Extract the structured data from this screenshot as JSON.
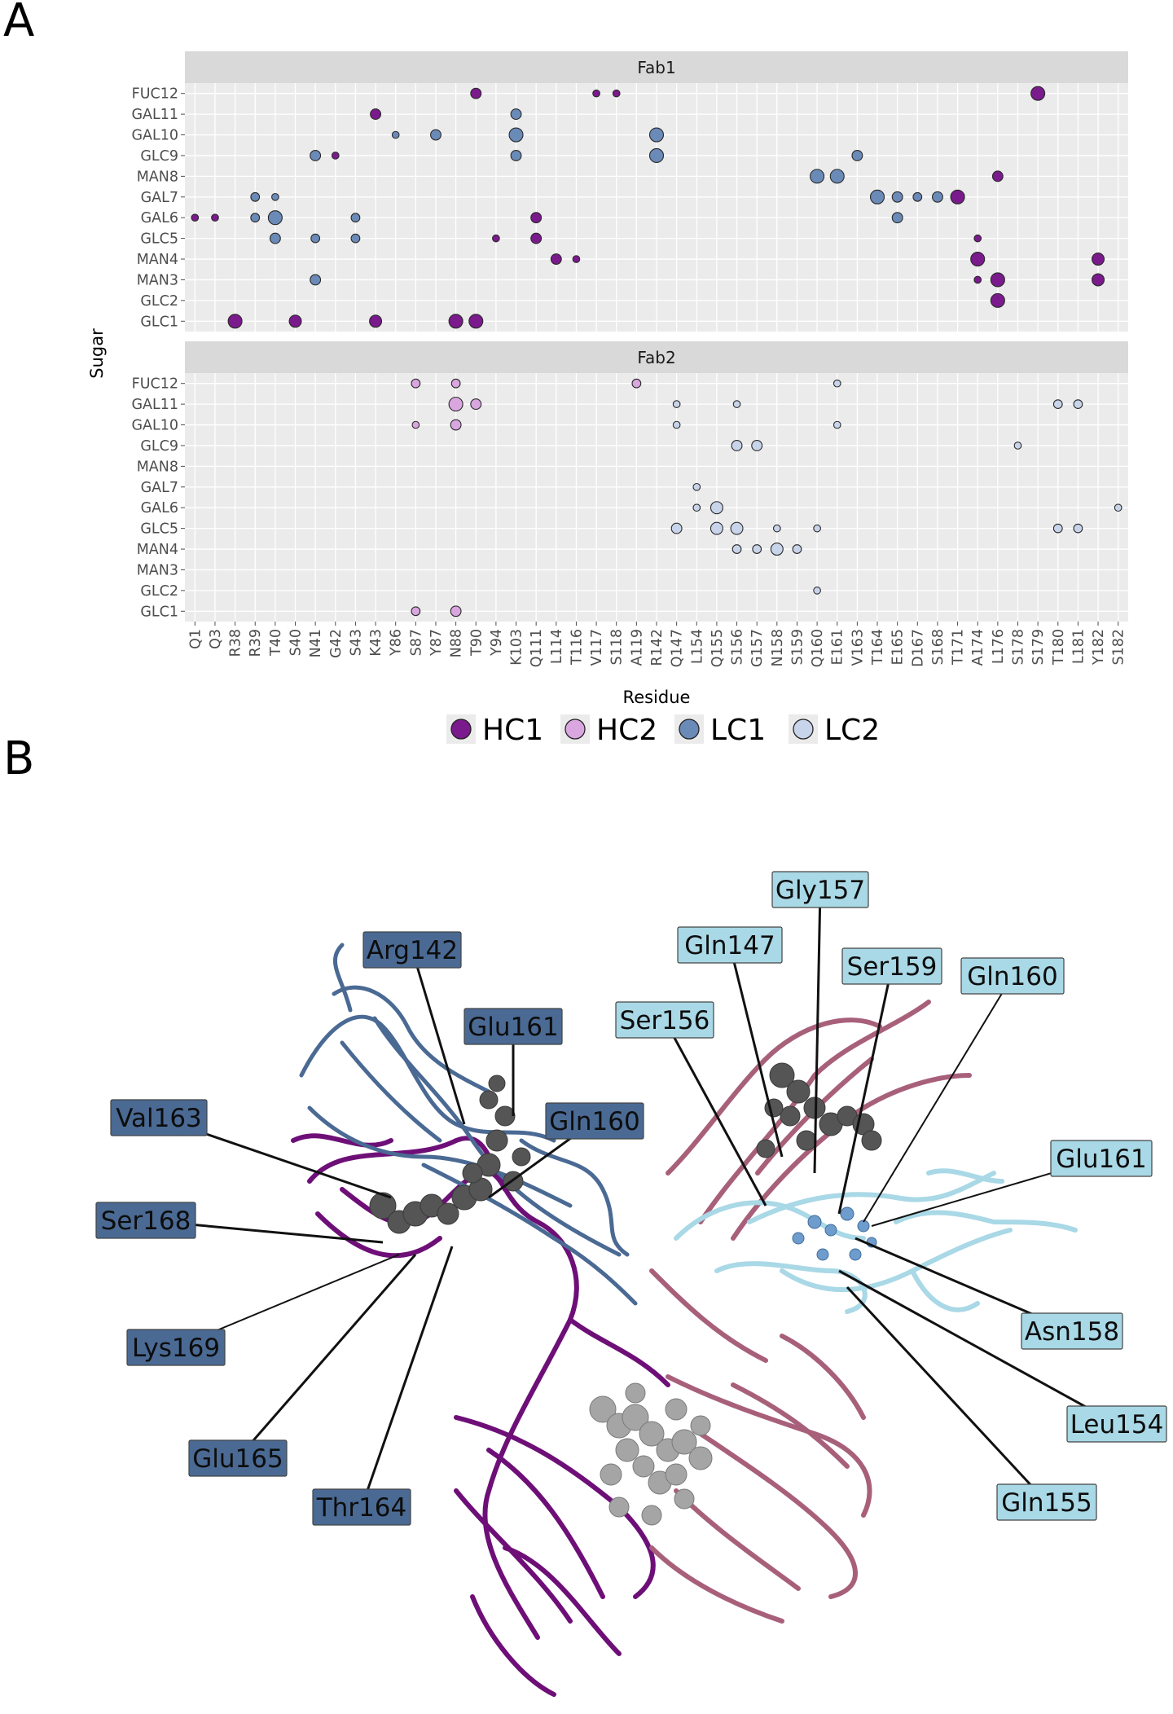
{
  "panels": {
    "a_letter": "A",
    "b_letter": "B"
  },
  "chart_data": {
    "type": "scatter",
    "title": "",
    "xlabel": "Residue",
    "ylabel": "Sugar",
    "residues": [
      "Q1",
      "Q3",
      "R38",
      "R39",
      "T40",
      "S40",
      "N41",
      "G42",
      "S43",
      "K43",
      "Y86",
      "S87",
      "Y87",
      "N88",
      "T90",
      "Y94",
      "K103",
      "Q111",
      "L114",
      "T116",
      "V117",
      "S118",
      "A119",
      "R142",
      "Q147",
      "L154",
      "Q155",
      "S156",
      "G157",
      "N158",
      "S159",
      "Q160",
      "E161",
      "V163",
      "T164",
      "E165",
      "D167",
      "S168",
      "T171",
      "A174",
      "L176",
      "S178",
      "S179",
      "T180",
      "L181",
      "Y182",
      "S182"
    ],
    "sugars": [
      "FUC12",
      "GAL11",
      "GAL10",
      "GLC9",
      "MAN8",
      "GAL7",
      "GAL6",
      "GLC5",
      "MAN4",
      "MAN3",
      "GLC2",
      "GLC1"
    ],
    "legend": [
      {
        "name": "HC1",
        "color": "#7a1a8c"
      },
      {
        "name": "HC2",
        "color": "#d9a6e0"
      },
      {
        "name": "LC1",
        "color": "#6a8ab8"
      },
      {
        "name": "LC2",
        "color": "#c8d4ea"
      }
    ],
    "panels": [
      {
        "strip": "Fab1",
        "points": [
          {
            "res": "T90",
            "sugar": "FUC12",
            "chain": "HC1",
            "size": 2
          },
          {
            "res": "V117",
            "sugar": "FUC12",
            "chain": "HC1",
            "size": 1
          },
          {
            "res": "S118",
            "sugar": "FUC12",
            "chain": "HC1",
            "size": 1
          },
          {
            "res": "S179",
            "sugar": "FUC12",
            "chain": "HC1",
            "size": 3
          },
          {
            "res": "K43",
            "sugar": "GAL11",
            "chain": "HC1",
            "size": 2
          },
          {
            "res": "K103",
            "sugar": "GAL11",
            "chain": "LC1",
            "size": 2
          },
          {
            "res": "Y86",
            "sugar": "GAL10",
            "chain": "LC1",
            "size": 1
          },
          {
            "res": "Y87",
            "sugar": "GAL10",
            "chain": "LC1",
            "size": 2
          },
          {
            "res": "K103",
            "sugar": "GAL10",
            "chain": "LC1",
            "size": 3
          },
          {
            "res": "R142",
            "sugar": "GAL10",
            "chain": "LC1",
            "size": 3
          },
          {
            "res": "N41",
            "sugar": "GLC9",
            "chain": "LC1",
            "size": 2
          },
          {
            "res": "G42",
            "sugar": "GLC9",
            "chain": "HC1",
            "size": 1
          },
          {
            "res": "K103",
            "sugar": "GLC9",
            "chain": "LC1",
            "size": 2
          },
          {
            "res": "R142",
            "sugar": "GLC9",
            "chain": "LC1",
            "size": 3
          },
          {
            "res": "V163",
            "sugar": "GLC9",
            "chain": "LC1",
            "size": 2
          },
          {
            "res": "Q160",
            "sugar": "MAN8",
            "chain": "LC1",
            "size": 3
          },
          {
            "res": "E161",
            "sugar": "MAN8",
            "chain": "LC1",
            "size": 3
          },
          {
            "res": "L176",
            "sugar": "MAN8",
            "chain": "HC1",
            "size": 2
          },
          {
            "res": "R39",
            "sugar": "GAL7",
            "chain": "LC1",
            "size": 1.5
          },
          {
            "res": "T40",
            "sugar": "GAL7",
            "chain": "LC1",
            "size": 1
          },
          {
            "res": "T164",
            "sugar": "GAL7",
            "chain": "LC1",
            "size": 3
          },
          {
            "res": "E165",
            "sugar": "GAL7",
            "chain": "LC1",
            "size": 2
          },
          {
            "res": "D167",
            "sugar": "GAL7",
            "chain": "LC1",
            "size": 1.5
          },
          {
            "res": "S168",
            "sugar": "GAL7",
            "chain": "LC1",
            "size": 2
          },
          {
            "res": "T171",
            "sugar": "GAL7",
            "chain": "HC1",
            "size": 3
          },
          {
            "res": "Q1",
            "sugar": "GAL6",
            "chain": "HC1",
            "size": 1
          },
          {
            "res": "Q3",
            "sugar": "GAL6",
            "chain": "HC1",
            "size": 1
          },
          {
            "res": "R39",
            "sugar": "GAL6",
            "chain": "LC1",
            "size": 1.5
          },
          {
            "res": "T40",
            "sugar": "GAL6",
            "chain": "LC1",
            "size": 3
          },
          {
            "res": "S43",
            "sugar": "GAL6",
            "chain": "LC1",
            "size": 1.5
          },
          {
            "res": "Q111",
            "sugar": "GAL6",
            "chain": "HC1",
            "size": 2
          },
          {
            "res": "E165",
            "sugar": "GAL6",
            "chain": "LC1",
            "size": 2
          },
          {
            "res": "T40",
            "sugar": "GLC5",
            "chain": "LC1",
            "size": 2
          },
          {
            "res": "N41",
            "sugar": "GLC5",
            "chain": "LC1",
            "size": 1.5
          },
          {
            "res": "S43",
            "sugar": "GLC5",
            "chain": "LC1",
            "size": 1.5
          },
          {
            "res": "Y94",
            "sugar": "GLC5",
            "chain": "HC1",
            "size": 1
          },
          {
            "res": "Q111",
            "sugar": "GLC5",
            "chain": "HC1",
            "size": 2
          },
          {
            "res": "A174",
            "sugar": "GLC5",
            "chain": "HC1",
            "size": 1
          },
          {
            "res": "L114",
            "sugar": "MAN4",
            "chain": "HC1",
            "size": 2
          },
          {
            "res": "T116",
            "sugar": "MAN4",
            "chain": "HC1",
            "size": 1
          },
          {
            "res": "A174",
            "sugar": "MAN4",
            "chain": "HC1",
            "size": 3
          },
          {
            "res": "Y182",
            "sugar": "MAN4",
            "chain": "HC1",
            "size": 2.5
          },
          {
            "res": "N41",
            "sugar": "MAN3",
            "chain": "LC1",
            "size": 2
          },
          {
            "res": "A174",
            "sugar": "MAN3",
            "chain": "HC1",
            "size": 1
          },
          {
            "res": "L176",
            "sugar": "MAN3",
            "chain": "HC1",
            "size": 3
          },
          {
            "res": "Y182",
            "sugar": "MAN3",
            "chain": "HC1",
            "size": 2.5
          },
          {
            "res": "L176",
            "sugar": "GLC2",
            "chain": "HC1",
            "size": 3
          },
          {
            "res": "R38",
            "sugar": "GLC1",
            "chain": "HC1",
            "size": 3
          },
          {
            "res": "S40",
            "sugar": "GLC1",
            "chain": "HC1",
            "size": 2.5
          },
          {
            "res": "K43",
            "sugar": "GLC1",
            "chain": "HC1",
            "size": 2.5
          },
          {
            "res": "N88",
            "sugar": "GLC1",
            "chain": "HC1",
            "size": 3
          },
          {
            "res": "T90",
            "sugar": "GLC1",
            "chain": "HC1",
            "size": 3
          }
        ]
      },
      {
        "strip": "Fab2",
        "points": [
          {
            "res": "S87",
            "sugar": "FUC12",
            "chain": "HC2",
            "size": 1.5
          },
          {
            "res": "N88",
            "sugar": "FUC12",
            "chain": "HC2",
            "size": 1.5
          },
          {
            "res": "A119",
            "sugar": "FUC12",
            "chain": "HC2",
            "size": 1.5
          },
          {
            "res": "E161",
            "sugar": "FUC12",
            "chain": "LC2",
            "size": 1
          },
          {
            "res": "N88",
            "sugar": "GAL11",
            "chain": "HC2",
            "size": 3
          },
          {
            "res": "T90",
            "sugar": "GAL11",
            "chain": "HC2",
            "size": 2
          },
          {
            "res": "Q147",
            "sugar": "GAL11",
            "chain": "LC2",
            "size": 1
          },
          {
            "res": "S156",
            "sugar": "GAL11",
            "chain": "LC2",
            "size": 1
          },
          {
            "res": "T180",
            "sugar": "GAL11",
            "chain": "LC2",
            "size": 1.5
          },
          {
            "res": "L181",
            "sugar": "GAL11",
            "chain": "LC2",
            "size": 1.5
          },
          {
            "res": "S87",
            "sugar": "GAL10",
            "chain": "HC2",
            "size": 1
          },
          {
            "res": "N88",
            "sugar": "GAL10",
            "chain": "HC2",
            "size": 2
          },
          {
            "res": "Q147",
            "sugar": "GAL10",
            "chain": "LC2",
            "size": 1
          },
          {
            "res": "E161",
            "sugar": "GAL10",
            "chain": "LC2",
            "size": 1
          },
          {
            "res": "S156",
            "sugar": "GLC9",
            "chain": "LC2",
            "size": 2
          },
          {
            "res": "G157",
            "sugar": "GLC9",
            "chain": "LC2",
            "size": 2
          },
          {
            "res": "S178",
            "sugar": "GLC9",
            "chain": "LC2",
            "size": 1
          },
          {
            "res": "L154",
            "sugar": "GAL7",
            "chain": "LC2",
            "size": 1
          },
          {
            "res": "L154",
            "sugar": "GAL6",
            "chain": "LC2",
            "size": 1
          },
          {
            "res": "Q155",
            "sugar": "GAL6",
            "chain": "LC2",
            "size": 2.5
          },
          {
            "res": "S182",
            "sugar": "GAL6",
            "chain": "LC2",
            "size": 1
          },
          {
            "res": "Q147",
            "sugar": "GLC5",
            "chain": "LC2",
            "size": 2
          },
          {
            "res": "Q155",
            "sugar": "GLC5",
            "chain": "LC2",
            "size": 2.5
          },
          {
            "res": "S156",
            "sugar": "GLC5",
            "chain": "LC2",
            "size": 2.5
          },
          {
            "res": "N158",
            "sugar": "GLC5",
            "chain": "LC2",
            "size": 1
          },
          {
            "res": "Q160",
            "sugar": "GLC5",
            "chain": "LC2",
            "size": 1
          },
          {
            "res": "T180",
            "sugar": "GLC5",
            "chain": "LC2",
            "size": 1.5
          },
          {
            "res": "L181",
            "sugar": "GLC5",
            "chain": "LC2",
            "size": 1.5
          },
          {
            "res": "S156",
            "sugar": "MAN4",
            "chain": "LC2",
            "size": 1.5
          },
          {
            "res": "G157",
            "sugar": "MAN4",
            "chain": "LC2",
            "size": 1.5
          },
          {
            "res": "N158",
            "sugar": "MAN4",
            "chain": "LC2",
            "size": 2.5
          },
          {
            "res": "S159",
            "sugar": "MAN4",
            "chain": "LC2",
            "size": 1.5
          },
          {
            "res": "Q160",
            "sugar": "GLC2",
            "chain": "LC2",
            "size": 1
          },
          {
            "res": "S87",
            "sugar": "GLC1",
            "chain": "HC2",
            "size": 1.5
          },
          {
            "res": "N88",
            "sugar": "GLC1",
            "chain": "HC2",
            "size": 2
          }
        ]
      }
    ]
  },
  "structure": {
    "lc1_color": "#4a6a94",
    "lc2_color": "#a9d8e6",
    "hc1_color": "#6e0f78",
    "hc2_color": "#a8607a",
    "lc1_labels": [
      "Arg142",
      "Glu161",
      "Val163",
      "Gln160",
      "Ser168",
      "Lys169",
      "Glu165",
      "Thr164"
    ],
    "lc2_labels": [
      "Gly157",
      "Gln147",
      "Ser159",
      "Gln160",
      "Ser156",
      "Glu161",
      "Asn158",
      "Leu154",
      "Gln155"
    ]
  }
}
